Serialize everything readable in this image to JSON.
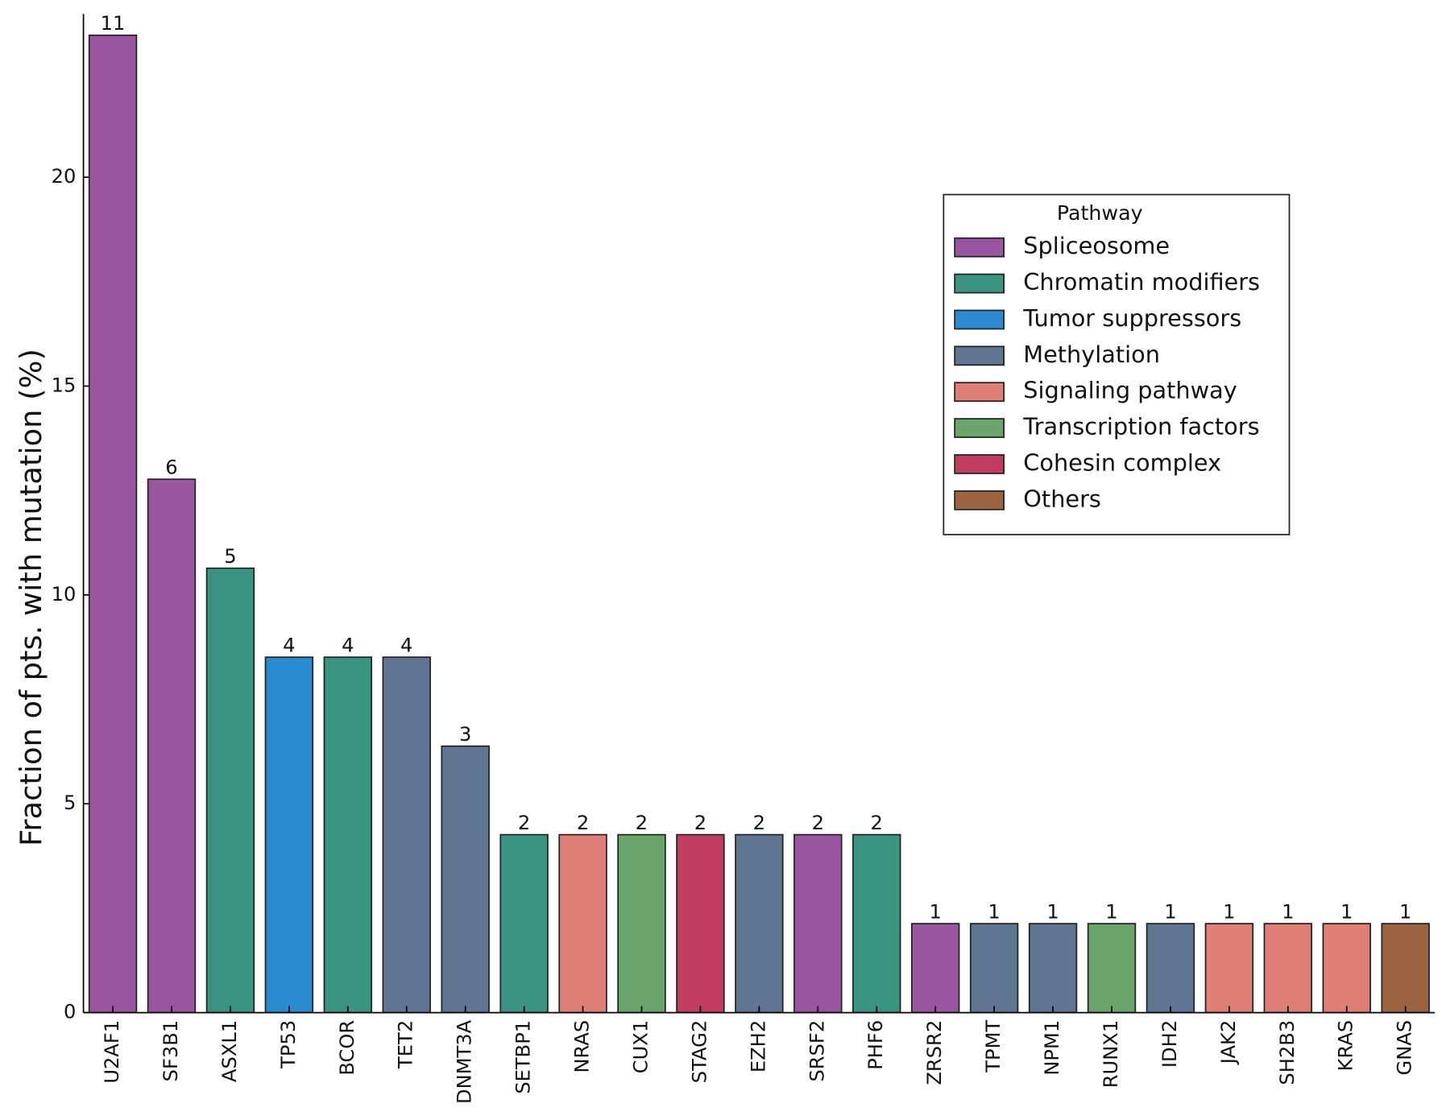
{
  "chart_data": {
    "type": "bar",
    "y_label": "Fraction of pts. with mutation (%)",
    "categories": [
      "U2AF1",
      "SF3B1",
      "ASXL1",
      "TP53",
      "BCOR",
      "TET2",
      "DNMT3A",
      "SETBP1",
      "NRAS",
      "CUX1",
      "STAG2",
      "EZH2",
      "SRSF2",
      "PHF6",
      "ZRSR2",
      "TPMT",
      "NPM1",
      "RUNX1",
      "IDH2",
      "JAK2",
      "SH2B3",
      "KRAS",
      "GNAS"
    ],
    "values": [
      23.4,
      12.77,
      10.64,
      8.51,
      8.51,
      8.51,
      6.38,
      4.26,
      4.26,
      4.26,
      4.26,
      4.26,
      4.26,
      4.26,
      2.13,
      2.13,
      2.13,
      2.13,
      2.13,
      2.13,
      2.13,
      2.13,
      2.13
    ],
    "counts": [
      11,
      6,
      5,
      4,
      4,
      4,
      3,
      2,
      2,
      2,
      2,
      2,
      2,
      2,
      1,
      1,
      1,
      1,
      1,
      1,
      1,
      1,
      1
    ],
    "colors": [
      "#9a55a0",
      "#9a55a0",
      "#3a9580",
      "#2b8bd1",
      "#3a9580",
      "#5f7592",
      "#5f7592",
      "#3a9580",
      "#e07f78",
      "#6aa56b",
      "#c23c62",
      "#5f7592",
      "#9a55a0",
      "#3a9580",
      "#9a55a0",
      "#5f7592",
      "#5f7592",
      "#6aa56b",
      "#5f7592",
      "#e07f78",
      "#e07f78",
      "#e07f78",
      "#9c6341"
    ],
    "ylim": [
      0,
      24
    ],
    "yticks": [
      0,
      5,
      10,
      15,
      20
    ],
    "legend": {
      "title": "Pathway",
      "position": "upper right",
      "items": [
        {
          "name": "Spliceosome",
          "color": "#9a55a0"
        },
        {
          "name": "Chromatin modifiers",
          "color": "#3a9580"
        },
        {
          "name": "Tumor suppressors",
          "color": "#2b8bd1"
        },
        {
          "name": "Methylation",
          "color": "#5f7592"
        },
        {
          "name": "Signaling pathway",
          "color": "#e07f78"
        },
        {
          "name": "Transcription factors",
          "color": "#6aa56b"
        },
        {
          "name": "Cohesin complex",
          "color": "#c23c62"
        },
        {
          "name": "Others",
          "color": "#9c6341"
        }
      ]
    }
  }
}
